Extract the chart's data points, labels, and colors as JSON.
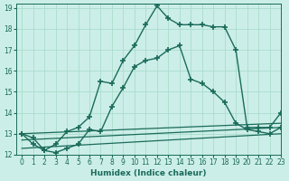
{
  "xlabel": "Humidex (Indice chaleur)",
  "ylabel": "",
  "xlim": [
    -0.5,
    23
  ],
  "ylim": [
    12,
    19.2
  ],
  "yticks": [
    12,
    13,
    14,
    15,
    16,
    17,
    18,
    19
  ],
  "xticks": [
    0,
    1,
    2,
    3,
    4,
    5,
    6,
    7,
    8,
    9,
    10,
    11,
    12,
    13,
    14,
    15,
    16,
    17,
    18,
    19,
    20,
    21,
    22,
    23
  ],
  "background_color": "#cceee8",
  "grid_color": "#aaddcc",
  "line_color": "#1a6b5a",
  "series": [
    {
      "x": [
        0,
        1,
        2,
        3,
        4,
        5,
        6,
        7,
        8,
        9,
        10,
        11,
        12,
        13,
        14,
        15,
        16,
        17,
        18,
        19,
        20,
        21,
        22,
        23
      ],
      "y": [
        13.0,
        12.8,
        12.2,
        12.5,
        13.1,
        13.3,
        13.8,
        15.5,
        15.4,
        16.5,
        17.2,
        18.2,
        19.1,
        18.5,
        18.2,
        18.2,
        18.2,
        18.1,
        18.1,
        17.0,
        13.3,
        13.3,
        13.3,
        14.0
      ],
      "marker": "+",
      "markersize": 4,
      "linewidth": 1.0
    },
    {
      "x": [
        0,
        1,
        2,
        3,
        4,
        5,
        6,
        7,
        8,
        9,
        10,
        11,
        12,
        13,
        14,
        15,
        16,
        17,
        18,
        19,
        20,
        21,
        22,
        23
      ],
      "y": [
        13.0,
        12.5,
        12.2,
        12.1,
        12.3,
        12.5,
        13.2,
        13.1,
        14.3,
        15.2,
        16.2,
        16.5,
        16.6,
        17.0,
        17.2,
        15.6,
        15.4,
        15.0,
        14.5,
        13.5,
        13.2,
        13.1,
        13.0,
        13.3
      ],
      "marker": "+",
      "markersize": 4,
      "linewidth": 1.0
    },
    {
      "x": [
        0,
        23
      ],
      "y": [
        13.0,
        13.5
      ],
      "marker": null,
      "markersize": 0,
      "linewidth": 0.9
    },
    {
      "x": [
        0,
        23
      ],
      "y": [
        12.7,
        13.3
      ],
      "marker": null,
      "markersize": 0,
      "linewidth": 0.9
    },
    {
      "x": [
        0,
        23
      ],
      "y": [
        12.3,
        13.0
      ],
      "marker": null,
      "markersize": 0,
      "linewidth": 0.9
    }
  ]
}
